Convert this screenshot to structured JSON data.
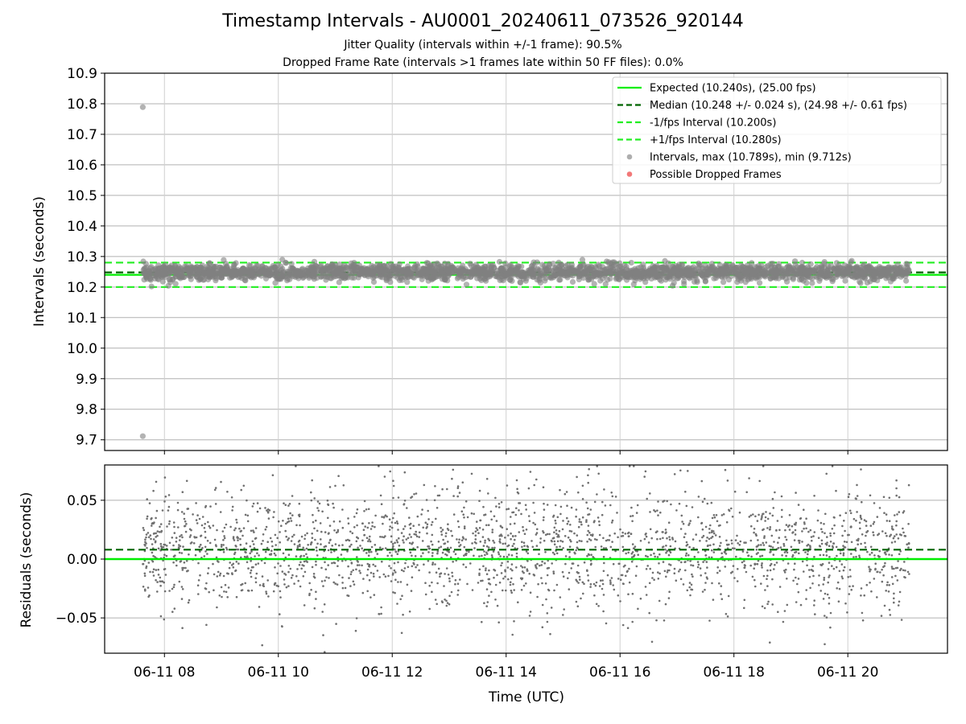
{
  "title": "Timestamp Intervals - AU0001_20240611_073526_920144",
  "subtitle_1": "Jitter Quality (intervals within +/-1 frame): 90.5%",
  "subtitle_2": "Dropped Frame Rate (intervals >1 frames late within 50 FF files): 0.0%",
  "colors": {
    "expected": "#00ee00",
    "median": "#006400",
    "fps_interval": "#22ee22",
    "points": "#808080",
    "dropped": "#f05050",
    "grid": "#b0b0b0"
  },
  "chart_data": [
    {
      "type": "scatter",
      "panel": "top",
      "ylabel": "Intervals (seconds)",
      "ylim": [
        9.665,
        10.9
      ],
      "yticks": [
        "9.7",
        "9.8",
        "9.9",
        "10.0",
        "10.1",
        "10.2",
        "10.3",
        "10.4",
        "10.5",
        "10.6",
        "10.7",
        "10.8",
        "10.9"
      ],
      "grid": true,
      "legend_position": "top-right",
      "x_start": "06-11 07:35",
      "x_end": "06-11 21:05",
      "expected_interval": 10.24,
      "median_interval": 10.248,
      "minus_interval": 10.2,
      "plus_interval": 10.28,
      "max_interval": 10.789,
      "min_interval": 9.712,
      "point_spread": 0.024,
      "dropped_frames": [],
      "legend": [
        {
          "label": "Expected (10.240s), (25.00 fps)",
          "style": "solid",
          "color": "#00ee00"
        },
        {
          "label": "Median (10.248 +/- 0.024 s), (24.98 +/- 0.61 fps)",
          "style": "dashed",
          "color": "#006400"
        },
        {
          "label": "-1/fps Interval (10.200s)",
          "style": "dashed",
          "color": "#22ee22"
        },
        {
          "label": "+1/fps Interval (10.280s)",
          "style": "dashed",
          "color": "#22ee22"
        },
        {
          "label": "Intervals, max (10.789s), min (9.712s)",
          "style": "marker",
          "color": "#a0a0a0"
        },
        {
          "label": "Possible Dropped Frames",
          "style": "marker",
          "color": "#f06060"
        }
      ]
    },
    {
      "type": "scatter",
      "panel": "bottom",
      "ylabel": "Residuals (seconds)",
      "xlabel": "Time (UTC)",
      "ylim": [
        -0.08,
        0.08
      ],
      "yticks": [
        "0.05",
        "0.00",
        "−0.05"
      ],
      "xticks": [
        "06-11 08",
        "06-11 10",
        "06-11 12",
        "06-11 14",
        "06-11 16",
        "06-11 18",
        "06-11 20"
      ],
      "grid": true,
      "zero_line": 0.0,
      "median_residual": 0.008,
      "x_start": "06-11 07:35",
      "x_end": "06-11 21:05"
    }
  ]
}
